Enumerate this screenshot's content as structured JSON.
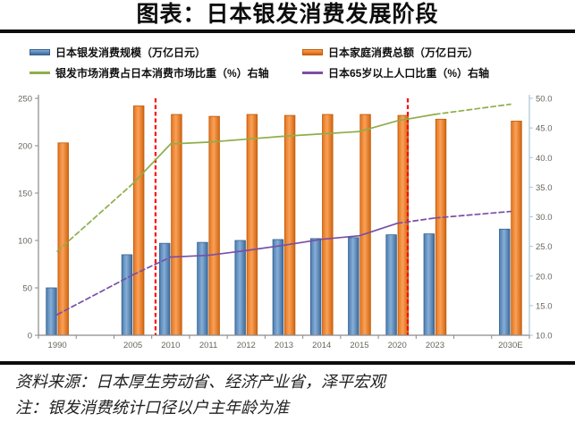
{
  "title": "图表：日本银发消费发展阶段",
  "source": {
    "line1": "资料来源：日本厚生劳动省、经济产业省，泽平宏观",
    "line2": "注：银发消费统计口径以户主年龄为准"
  },
  "colors": {
    "blue_bar": "#4f81bd",
    "blue_bar_border": "#35608f",
    "blue_bar_gradient": [
      "#4c7dae",
      "#86aed8",
      "#3f6b9a"
    ],
    "orange_bar": "#ed7d31",
    "orange_bar_border": "#bf5a08",
    "orange_bar_gradient": [
      "#e4741f",
      "#f9a159",
      "#d2650e"
    ],
    "green_line": "#8fae4a",
    "purple_line": "#7a4fa5",
    "red_divider": "#fe0000",
    "axis_line": "#8a8a8a",
    "right_axis_line": "#a9c6d5",
    "tick_label": "#68655c",
    "title_text": "#0d0d0d",
    "rule_black": "#0d0d0d"
  },
  "chart_data": {
    "type": "bar+line",
    "title": "图表：日本银发消费发展阶段",
    "legend_position": "top",
    "grid": false,
    "categories": [
      "1990",
      "2005",
      "2010",
      "2011",
      "2012",
      "2013",
      "2014",
      "2015",
      "2020",
      "2023",
      "2030E"
    ],
    "slot_of_category": [
      0,
      2,
      3,
      4,
      5,
      6,
      7,
      8,
      9,
      10,
      12
    ],
    "total_slots": 13,
    "red_divider_slots": [
      3.1,
      9.78
    ],
    "left_axis": {
      "min": 0,
      "max": 250,
      "step": 50,
      "ticks": [
        "0",
        "50",
        "100",
        "150",
        "200",
        "250"
      ]
    },
    "right_axis": {
      "min": 10,
      "max": 50,
      "step": 5,
      "ticks": [
        "10.0",
        "15.0",
        "20.0",
        "25.0",
        "30.0",
        "35.0",
        "40.0",
        "45.0",
        "50.0"
      ]
    },
    "series": [
      {
        "name": "日本银发消费规模（万亿日元）",
        "type": "bar",
        "axis": "left",
        "color": "#4f81bd",
        "values": [
          50,
          85,
          97,
          98,
          100,
          101,
          102,
          103,
          106,
          107,
          112
        ]
      },
      {
        "name": "日本家庭消费总额（万亿日元）",
        "type": "bar",
        "axis": "left",
        "color": "#ed7d31",
        "values": [
          203,
          242,
          233,
          231,
          233,
          232,
          233,
          233,
          232,
          228,
          226
        ]
      },
      {
        "name": "银发市场消费占日本消费市场比重（%）右轴",
        "type": "line",
        "axis": "right",
        "color": "#8fae4a",
        "values": [
          24.2,
          35.6,
          42.3,
          42.6,
          43.1,
          43.6,
          44.0,
          44.4,
          46.2,
          47.3,
          49.0
        ],
        "dashed_segments": [
          0,
          9
        ]
      },
      {
        "name": "日本65岁以上人口比重（%）右轴",
        "type": "line",
        "axis": "right",
        "color": "#7a4fa5",
        "values": [
          13.5,
          20.2,
          23.2,
          23.5,
          24.3,
          25.2,
          26.2,
          26.8,
          28.9,
          29.8,
          30.9
        ],
        "dashed_segments": [
          0,
          1,
          8,
          9
        ]
      }
    ]
  }
}
